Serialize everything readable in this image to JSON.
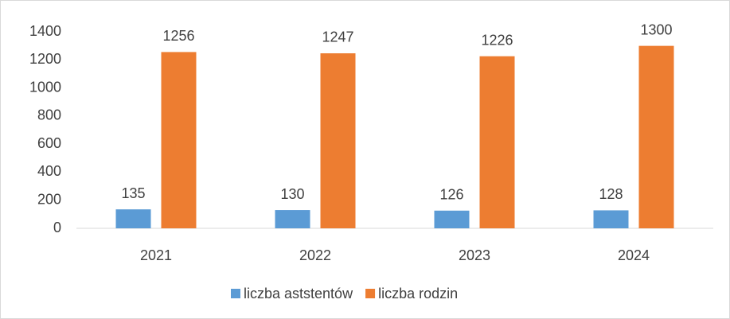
{
  "chart_data": {
    "type": "bar",
    "categories": [
      "2021",
      "2022",
      "2023",
      "2024"
    ],
    "series": [
      {
        "name": "liczba aststentów",
        "color": "#5b9bd5",
        "values": [
          135,
          130,
          126,
          128
        ]
      },
      {
        "name": "liczba rodzin",
        "color": "#ed7d31",
        "values": [
          1256,
          1247,
          1226,
          1300
        ]
      }
    ],
    "ylim": [
      0,
      1400
    ],
    "yticks": [
      0,
      200,
      400,
      600,
      800,
      1000,
      1200,
      1400
    ],
    "grid": false,
    "legend": "bottom",
    "data_labels": true
  }
}
